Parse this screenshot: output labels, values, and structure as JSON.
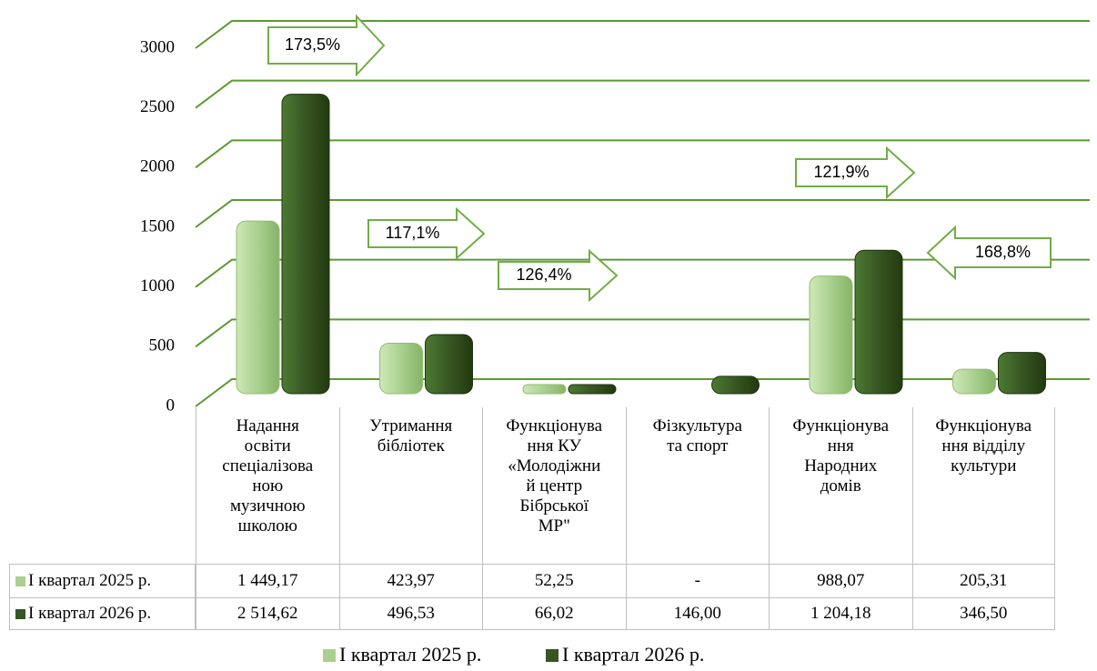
{
  "chart_data": {
    "type": "bar",
    "categories": [
      "Надання\nосвіти\nспеціалізова\nною\nмузичною\nшколою",
      "Утримання\nбібліотек",
      "Функціонува\nння КУ\n«Молодіжни\nй центр\nБібрської\nМР\"",
      "Фізкультура\nта спорт",
      "Функціонува\nння\nНародних\nдомів",
      "Функціонува\nння відділу\nкультури"
    ],
    "series": [
      {
        "name": "І квартал 2025 р.",
        "color": "#a9d08e",
        "values": [
          1449.17,
          423.97,
          52.25,
          null,
          988.07,
          205.31
        ],
        "value_labels": [
          "1 449,17",
          "423,97",
          "52,25",
          "-",
          "988,07",
          "205,31"
        ]
      },
      {
        "name": "І квартал 2026 р.",
        "color": "#375623",
        "values": [
          2514.62,
          496.53,
          66.02,
          146.0,
          1204.18,
          346.5
        ],
        "value_labels": [
          "2 514,62",
          "496,53",
          "66,02",
          "146,00",
          "1 204,18",
          "346,50"
        ]
      }
    ],
    "ylim": [
      0,
      3000
    ],
    "yticks": [
      0,
      500,
      1000,
      1500,
      2000,
      2500,
      3000
    ],
    "grid": true,
    "annotations": [
      "173,5%",
      "117,1%",
      "126,4%",
      "121,9%",
      "168,8%"
    ]
  }
}
